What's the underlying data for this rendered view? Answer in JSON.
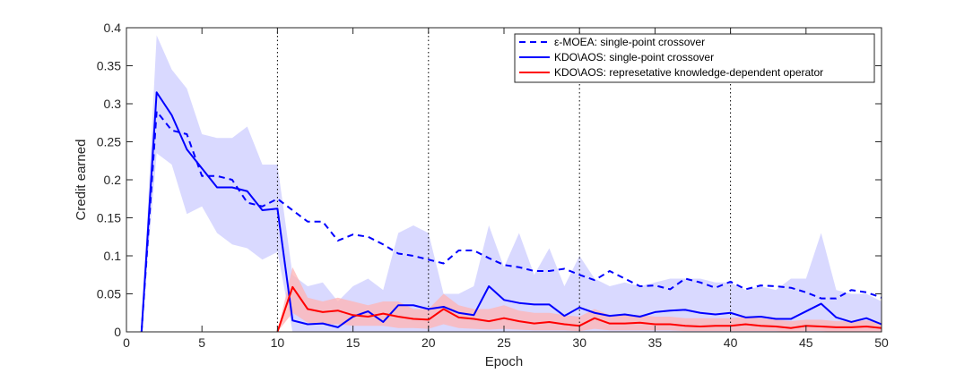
{
  "chart_data": {
    "type": "line",
    "xlabel": "Epoch",
    "ylabel": "Credit earned",
    "xlim": [
      0,
      50
    ],
    "ylim": [
      0,
      0.4
    ],
    "xticks": [
      "0",
      "5",
      "10",
      "15",
      "20",
      "25",
      "30",
      "35",
      "40",
      "45",
      "50"
    ],
    "yticks": [
      "0",
      "0.05",
      "0.1",
      "0.15",
      "0.2",
      "0.25",
      "0.3",
      "0.35",
      "0.4"
    ],
    "vlines": [
      10,
      20,
      30,
      40
    ],
    "legend_position": "top-right",
    "series": [
      {
        "name": "ε-MOEA: single-point crossover",
        "color": "#0000ff",
        "style": "dashed",
        "x": [
          1,
          2,
          3,
          4,
          5,
          6,
          7,
          8,
          9,
          10,
          11,
          12,
          13,
          14,
          15,
          16,
          17,
          18,
          19,
          20,
          21,
          22,
          23,
          24,
          25,
          26,
          27,
          28,
          29,
          30,
          31,
          32,
          33,
          34,
          35,
          36,
          37,
          38,
          39,
          40,
          41,
          42,
          43,
          44,
          45,
          46,
          47,
          48,
          49,
          50
        ],
        "values": [
          0,
          0.29,
          0.265,
          0.26,
          0.205,
          0.205,
          0.2,
          0.17,
          0.165,
          0.175,
          0.16,
          0.145,
          0.145,
          0.12,
          0.128,
          0.125,
          0.115,
          0.103,
          0.1,
          0.095,
          0.09,
          0.107,
          0.107,
          0.097,
          0.088,
          0.085,
          0.08,
          0.08,
          0.083,
          0.075,
          0.068,
          0.08,
          0.07,
          0.06,
          0.061,
          0.056,
          0.07,
          0.065,
          0.058,
          0.066,
          0.056,
          0.061,
          0.06,
          0.058,
          0.052,
          0.044,
          0.044,
          0.055,
          0.052,
          0.045
        ]
      },
      {
        "name": "KDO\\AOS: single-point crossover",
        "color": "#0000ff",
        "style": "solid",
        "x": [
          1,
          2,
          3,
          4,
          5,
          6,
          7,
          8,
          9,
          10,
          11,
          12,
          13,
          14,
          15,
          16,
          17,
          18,
          19,
          20,
          21,
          22,
          23,
          24,
          25,
          26,
          27,
          28,
          29,
          30,
          31,
          32,
          33,
          34,
          35,
          36,
          37,
          38,
          39,
          40,
          41,
          42,
          43,
          44,
          45,
          46,
          47,
          48,
          49,
          50
        ],
        "values": [
          0,
          0.315,
          0.285,
          0.24,
          0.215,
          0.19,
          0.19,
          0.185,
          0.16,
          0.162,
          0.015,
          0.01,
          0.011,
          0.006,
          0.02,
          0.027,
          0.013,
          0.035,
          0.035,
          0.03,
          0.033,
          0.025,
          0.022,
          0.06,
          0.042,
          0.038,
          0.036,
          0.036,
          0.021,
          0.032,
          0.025,
          0.021,
          0.023,
          0.02,
          0.026,
          0.028,
          0.029,
          0.025,
          0.023,
          0.025,
          0.019,
          0.02,
          0.017,
          0.017,
          0.027,
          0.037,
          0.019,
          0.013,
          0.018,
          0.01
        ]
      },
      {
        "name": "KDO\\AOS: represetative knowledge-dependent operator",
        "color": "#ff0000",
        "style": "solid",
        "x": [
          10,
          11,
          12,
          13,
          14,
          15,
          16,
          17,
          18,
          19,
          20,
          21,
          22,
          23,
          24,
          25,
          26,
          27,
          28,
          29,
          30,
          31,
          32,
          33,
          34,
          35,
          36,
          37,
          38,
          39,
          40,
          41,
          42,
          43,
          44,
          45,
          46,
          47,
          48,
          49,
          50
        ],
        "values": [
          0,
          0.059,
          0.03,
          0.026,
          0.028,
          0.022,
          0.02,
          0.024,
          0.02,
          0.017,
          0.016,
          0.03,
          0.019,
          0.017,
          0.014,
          0.018,
          0.014,
          0.011,
          0.013,
          0.01,
          0.008,
          0.018,
          0.011,
          0.011,
          0.012,
          0.01,
          0.01,
          0.008,
          0.007,
          0.008,
          0.008,
          0.01,
          0.008,
          0.007,
          0.005,
          0.008,
          0.007,
          0.006,
          0.006,
          0.007,
          0.005
        ]
      }
    ],
    "bands": [
      {
        "of": "KDO\\AOS: single-point crossover",
        "color": "#ccccff",
        "x": [
          1,
          2,
          3,
          4,
          5,
          6,
          7,
          8,
          9,
          10,
          11,
          12,
          13,
          14,
          15,
          16,
          17,
          18,
          19,
          20,
          21,
          22,
          23,
          24,
          25,
          26,
          27,
          28,
          29,
          30,
          31,
          32,
          33,
          34,
          35,
          36,
          37,
          38,
          39,
          40,
          41,
          42,
          43,
          44,
          45,
          46,
          47,
          48,
          49,
          50
        ],
        "upper": [
          0,
          0.39,
          0.345,
          0.32,
          0.26,
          0.255,
          0.255,
          0.27,
          0.22,
          0.22,
          0.075,
          0.06,
          0.065,
          0.04,
          0.06,
          0.07,
          0.055,
          0.13,
          0.14,
          0.13,
          0.05,
          0.05,
          0.06,
          0.14,
          0.085,
          0.13,
          0.075,
          0.11,
          0.06,
          0.1,
          0.07,
          0.06,
          0.065,
          0.06,
          0.065,
          0.07,
          0.07,
          0.07,
          0.065,
          0.065,
          0.055,
          0.06,
          0.055,
          0.07,
          0.07,
          0.13,
          0.055,
          0.05,
          0.05,
          0.04
        ],
        "lower": [
          0,
          0.235,
          0.22,
          0.155,
          0.165,
          0.13,
          0.115,
          0.11,
          0.095,
          0.105,
          0,
          0,
          0,
          0,
          0,
          0,
          0,
          0,
          0,
          0,
          0,
          0,
          0,
          0,
          0,
          0,
          0,
          0,
          0,
          0,
          0,
          0,
          0,
          0,
          0,
          0,
          0,
          0,
          0,
          0,
          0,
          0,
          0,
          0,
          0,
          0,
          0,
          0,
          0,
          0
        ]
      },
      {
        "of": "KDO\\AOS: represetative knowledge-dependent operator",
        "color": "#ffb3b3",
        "x": [
          10,
          11,
          12,
          13,
          14,
          15,
          16,
          17,
          18,
          19,
          20,
          21,
          22,
          23,
          24,
          25,
          26,
          27,
          28,
          29,
          30,
          31,
          32,
          33,
          34,
          35,
          36,
          37,
          38,
          39,
          40,
          41,
          42,
          43,
          44,
          45,
          46,
          47,
          48,
          49,
          50
        ],
        "upper": [
          0,
          0.085,
          0.045,
          0.04,
          0.045,
          0.04,
          0.035,
          0.04,
          0.04,
          0.03,
          0.03,
          0.05,
          0.035,
          0.03,
          0.03,
          0.035,
          0.028,
          0.025,
          0.025,
          0.022,
          0.02,
          0.03,
          0.022,
          0.022,
          0.022,
          0.02,
          0.02,
          0.018,
          0.018,
          0.018,
          0.018,
          0.02,
          0.018,
          0.016,
          0.014,
          0.016,
          0.016,
          0.014,
          0.014,
          0.015,
          0.012
        ],
        "lower": [
          0,
          0.025,
          0.012,
          0.01,
          0.01,
          0.008,
          0.008,
          0.008,
          0.005,
          0.005,
          0.004,
          0.01,
          0.005,
          0.004,
          0.003,
          0.004,
          0.003,
          0.002,
          0.002,
          0.002,
          0.001,
          0.004,
          0.002,
          0.002,
          0.002,
          0.002,
          0.002,
          0.001,
          0.001,
          0.001,
          0.001,
          0.001,
          0.001,
          0.001,
          0,
          0.001,
          0.001,
          0,
          0,
          0,
          0
        ]
      }
    ]
  }
}
